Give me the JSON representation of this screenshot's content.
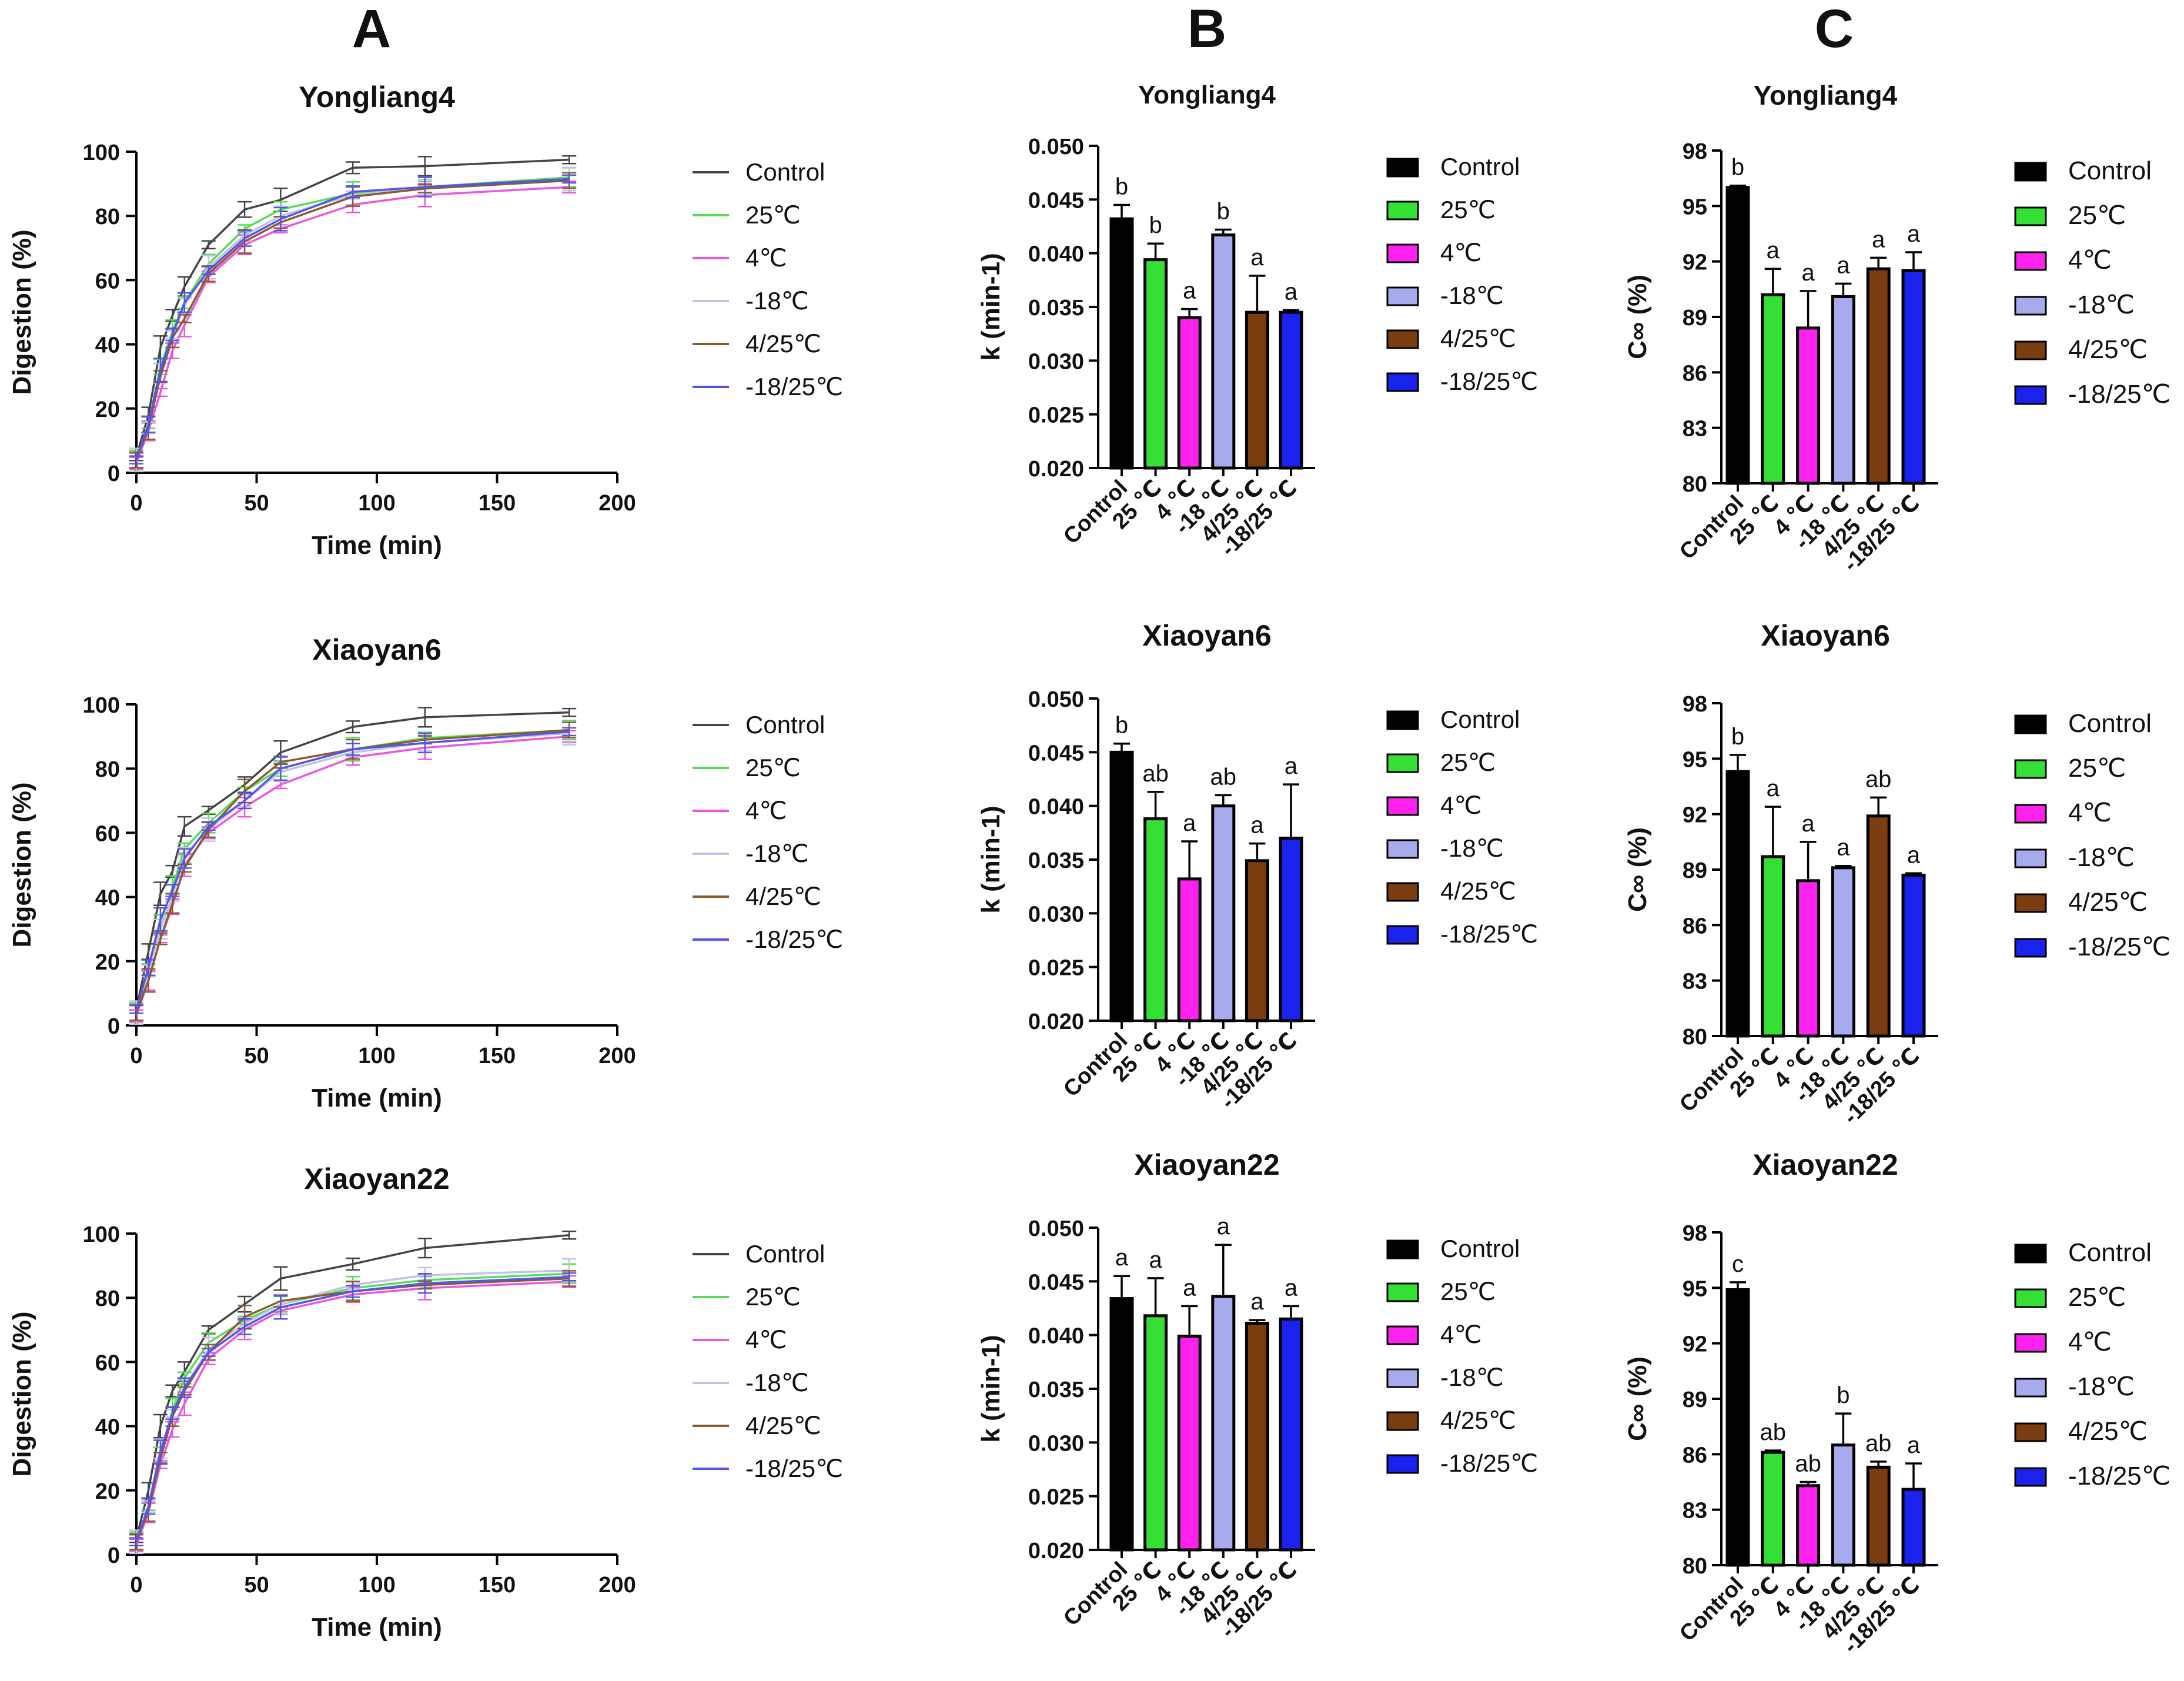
{
  "column_labels": [
    "A",
    "B",
    "C"
  ],
  "legend_labels": [
    "Control",
    "25℃",
    "4℃",
    "-18℃",
    "4/25℃",
    "-18/25℃"
  ],
  "colors": {
    "Control": "#000000",
    "25℃": "#33e033",
    "4℃": "#ff22ee",
    "-18℃": "#a8aaee",
    "4/25℃": "#7a3d10",
    "-18/25℃": "#1a22ee",
    "line_colors": [
      "#444444",
      "#55dd55",
      "#ee55dd",
      "#c0c2e6",
      "#8a5a30",
      "#5555e6"
    ]
  },
  "chart_data": [
    {
      "id": "A1",
      "type": "line",
      "title": "Yongliang4",
      "xlabel": "Time (min)",
      "ylabel": "Digestion (%)",
      "xlim": [
        0,
        200
      ],
      "ylim": [
        0,
        100
      ],
      "xticks": [
        "0",
        "50",
        "100",
        "150",
        "200"
      ],
      "yticks": [
        "0",
        "20",
        "40",
        "60",
        "80",
        "100"
      ],
      "x": [
        0,
        5,
        10,
        15,
        20,
        30,
        45,
        60,
        90,
        120,
        180
      ],
      "series": [
        {
          "name": "Control",
          "values": [
            5,
            18,
            39,
            49,
            58,
            71,
            82,
            85,
            95,
            95.5,
            97.5
          ]
        },
        {
          "name": "25℃",
          "values": [
            4,
            15,
            33,
            44,
            53,
            65,
            76,
            82,
            87,
            89,
            92
          ]
        },
        {
          "name": "4℃",
          "values": [
            3,
            13,
            25,
            38,
            46,
            61,
            71,
            76,
            83.5,
            86.5,
            89
          ]
        },
        {
          "name": "-18℃",
          "values": [
            4,
            14,
            31,
            43,
            52,
            64,
            74,
            80,
            86.5,
            89,
            91.5
          ]
        },
        {
          "name": "4/25℃",
          "values": [
            4,
            14,
            30,
            42,
            48,
            62,
            72,
            78,
            86,
            88.5,
            91
          ]
        },
        {
          "name": "-18/25℃",
          "values": [
            4,
            15,
            32,
            43,
            53,
            63,
            73,
            79,
            87.5,
            89,
            91.5
          ]
        }
      ]
    },
    {
      "id": "A2",
      "type": "line",
      "title": "Xiaoyan6",
      "xlabel": "Time (min)",
      "ylabel": "Digestion (%)",
      "xlim": [
        0,
        200
      ],
      "ylim": [
        0,
        100
      ],
      "xticks": [
        "0",
        "50",
        "100",
        "150",
        "200"
      ],
      "yticks": [
        "0",
        "20",
        "40",
        "60",
        "80",
        "100"
      ],
      "x": [
        0,
        5,
        10,
        15,
        20,
        30,
        45,
        60,
        90,
        120,
        180
      ],
      "series": [
        {
          "name": "Control",
          "values": [
            5,
            23,
            41,
            48,
            62,
            67,
            75,
            85,
            93,
            96,
            97.5
          ]
        },
        {
          "name": "25℃",
          "values": [
            4,
            18,
            32,
            43,
            55,
            63,
            73,
            80,
            86,
            89.5,
            92
          ]
        },
        {
          "name": "4℃",
          "values": [
            3,
            14,
            27,
            37,
            50,
            60,
            68,
            75,
            83.5,
            86.5,
            90
          ]
        },
        {
          "name": "-18℃",
          "values": [
            4,
            17,
            30,
            40,
            53,
            61,
            70,
            79,
            85,
            88,
            91
          ]
        },
        {
          "name": "4/25℃",
          "values": [
            4,
            14,
            27,
            38,
            49,
            61,
            73,
            82,
            86,
            89,
            92
          ]
        },
        {
          "name": "-18/25℃",
          "values": [
            5,
            18,
            33,
            42,
            52,
            62,
            70,
            80,
            86,
            88,
            91.5
          ]
        }
      ]
    },
    {
      "id": "A3",
      "type": "line",
      "title": "Xiaoyan22",
      "xlabel": "Time (min)",
      "ylabel": "Digestion (%)",
      "xlim": [
        0,
        200
      ],
      "ylim": [
        0,
        100
      ],
      "xticks": [
        "0",
        "50",
        "100",
        "150",
        "200"
      ],
      "yticks": [
        "0",
        "20",
        "40",
        "60",
        "80",
        "100"
      ],
      "x": [
        0,
        5,
        10,
        15,
        20,
        30,
        45,
        60,
        90,
        120,
        180
      ],
      "series": [
        {
          "name": "Control",
          "values": [
            5,
            20,
            40,
            51,
            57,
            70,
            78,
            86,
            90.5,
            95.5,
            99.5
          ]
        },
        {
          "name": "25℃",
          "values": [
            4,
            15,
            31,
            45,
            55,
            66,
            73,
            78,
            83,
            85.5,
            87.5
          ]
        },
        {
          "name": "4℃",
          "values": [
            3,
            13,
            28,
            39,
            47,
            61,
            70,
            76,
            81,
            83,
            85
          ]
        },
        {
          "name": "-18℃",
          "values": [
            4,
            15,
            33,
            44,
            52,
            64,
            72,
            78,
            84,
            87,
            88.5
          ]
        },
        {
          "name": "4/25℃",
          "values": [
            4,
            14,
            30,
            43,
            51,
            63,
            74,
            79,
            82,
            84,
            86
          ]
        },
        {
          "name": "-18/25℃",
          "values": [
            4,
            15,
            32,
            44,
            52,
            63,
            71,
            77,
            82,
            84.5,
            86.5
          ]
        }
      ]
    },
    {
      "id": "B1",
      "type": "bar",
      "title": "Yongliang4",
      "ylabel": "k (min-1)",
      "ylim": [
        0.02,
        0.05
      ],
      "yticks": [
        "0.020",
        "0.025",
        "0.030",
        "0.035",
        "0.040",
        "0.045",
        "0.050"
      ],
      "categories": [
        "Control",
        "25 ℃",
        "4 ℃",
        "-18 ℃",
        "4/25 ℃",
        "-18/25 ℃"
      ],
      "values": [
        0.0432,
        0.0394,
        0.034,
        0.0417,
        0.0345,
        0.0345
      ],
      "errors": [
        0.0013,
        0.0015,
        0.0008,
        0.0005,
        0.0034,
        0.0002
      ],
      "letters": [
        "b",
        "b",
        "a",
        "b",
        "a",
        "a"
      ]
    },
    {
      "id": "B2",
      "type": "bar",
      "title": "Xiaoyan6",
      "ylabel": "k (min-1)",
      "ylim": [
        0.02,
        0.05
      ],
      "yticks": [
        "0.020",
        "0.025",
        "0.030",
        "0.035",
        "0.040",
        "0.045",
        "0.050"
      ],
      "categories": [
        "Control",
        "25 ℃",
        "4 ℃",
        "-18 ℃",
        "4/25 ℃",
        "-18/25 ℃"
      ],
      "values": [
        0.045,
        0.0388,
        0.0332,
        0.04,
        0.0349,
        0.037
      ],
      "errors": [
        0.0008,
        0.0025,
        0.0035,
        0.001,
        0.0016,
        0.005
      ],
      "letters": [
        "b",
        "ab",
        "a",
        "ab",
        "a",
        "a"
      ]
    },
    {
      "id": "B3",
      "type": "bar",
      "title": "Xiaoyan22",
      "ylabel": "k (min-1)",
      "ylim": [
        0.02,
        0.05
      ],
      "yticks": [
        "0.020",
        "0.025",
        "0.030",
        "0.035",
        "0.040",
        "0.045",
        "0.050"
      ],
      "categories": [
        "Control",
        "25 ℃",
        "4 ℃",
        "-18 ℃",
        "4/25 ℃",
        "-18/25 ℃"
      ],
      "values": [
        0.0434,
        0.0418,
        0.0399,
        0.0436,
        0.0411,
        0.0415
      ],
      "errors": [
        0.0021,
        0.0035,
        0.0028,
        0.0048,
        0.0003,
        0.0012
      ],
      "letters": [
        "a",
        "a",
        "a",
        "a",
        "a",
        "a"
      ]
    },
    {
      "id": "C1",
      "type": "bar",
      "title": "Yongliang4",
      "ylabel": "C∞ (%)",
      "ylim": [
        80,
        98
      ],
      "yticks": [
        "80",
        "83",
        "86",
        "89",
        "92",
        "95",
        "98"
      ],
      "categories": [
        "Control",
        "25 ℃",
        "4 ℃",
        "-18 ℃",
        "4/25 ℃",
        "-18/25 ℃"
      ],
      "values": [
        96,
        90.2,
        88.4,
        90.1,
        91.6,
        91.5
      ],
      "errors": [
        0.1,
        1.4,
        2.0,
        0.7,
        0.6,
        1.0
      ],
      "letters": [
        "b",
        "a",
        "a",
        "a",
        "a",
        "a"
      ]
    },
    {
      "id": "C2",
      "type": "bar",
      "title": "Xiaoyan6",
      "ylabel": "C∞ (%)",
      "ylim": [
        80,
        98
      ],
      "yticks": [
        "80",
        "83",
        "86",
        "89",
        "92",
        "95",
        "98"
      ],
      "categories": [
        "Control",
        "25 ℃",
        "4 ℃",
        "-18 ℃",
        "4/25 ℃",
        "-18/25 ℃"
      ],
      "values": [
        94.3,
        89.7,
        88.4,
        89.1,
        91.9,
        88.7
      ],
      "errors": [
        0.9,
        2.7,
        2.1,
        0.1,
        1.0,
        0.1
      ],
      "letters": [
        "b",
        "a",
        "a",
        "a",
        "ab",
        "a"
      ]
    },
    {
      "id": "C3",
      "type": "bar",
      "title": "Xiaoyan22",
      "ylabel": "C∞ (%)",
      "ylim": [
        80,
        98
      ],
      "yticks": [
        "80",
        "83",
        "86",
        "89",
        "92",
        "95",
        "98"
      ],
      "categories": [
        "Control",
        "25 ℃",
        "4 ℃",
        "-18 ℃",
        "4/25 ℃",
        "-18/25 ℃"
      ],
      "values": [
        94.9,
        86.1,
        84.3,
        86.5,
        85.3,
        84.1
      ],
      "errors": [
        0.4,
        0.1,
        0.2,
        1.7,
        0.3,
        1.4
      ],
      "letters": [
        "c",
        "ab",
        "ab",
        "b",
        "ab",
        "a"
      ]
    }
  ]
}
